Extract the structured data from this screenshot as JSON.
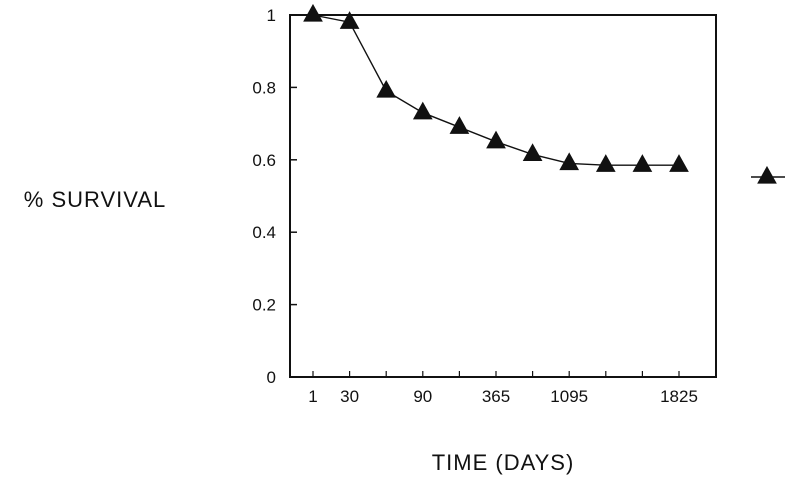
{
  "chart_data": {
    "type": "line",
    "xlabel": "TIME (DAYS)",
    "ylabel": "% SURVIVAL",
    "ylim": [
      0,
      1
    ],
    "grid": false,
    "legend": "right",
    "y_ticks": [
      "0",
      "0.2",
      "0.4",
      "0.6",
      "0.8",
      "1"
    ],
    "x_ticks": [
      "1",
      "30",
      "90",
      "365",
      "1095",
      "1825"
    ],
    "series": [
      {
        "marker": "triangle",
        "color": "#111111",
        "points": [
          {
            "x": "1",
            "y": 1.0
          },
          {
            "x": "30",
            "y": 0.98
          },
          {
            "x": "",
            "y": 0.79
          },
          {
            "x": "90",
            "y": 0.73
          },
          {
            "x": "",
            "y": 0.69
          },
          {
            "x": "365",
            "y": 0.65
          },
          {
            "x": "",
            "y": 0.615
          },
          {
            "x": "1095",
            "y": 0.59
          },
          {
            "x": "",
            "y": 0.585
          },
          {
            "x": "",
            "y": 0.585
          },
          {
            "x": "1825",
            "y": 0.585
          }
        ]
      }
    ]
  }
}
